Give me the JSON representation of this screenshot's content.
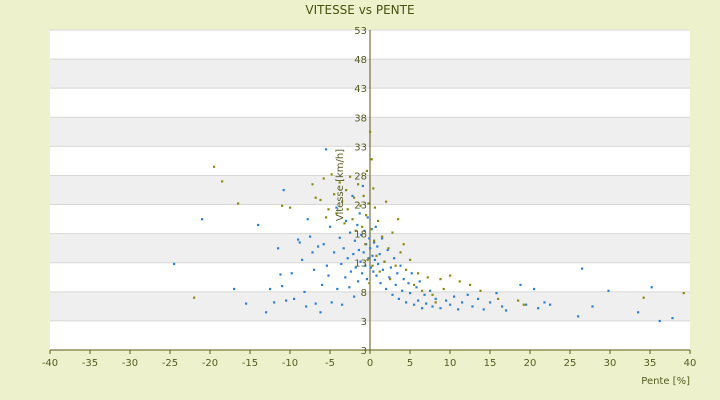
{
  "chart_data": {
    "type": "scatter",
    "title": "VITESSE vs PENTE",
    "xlabel": "Pente [%]",
    "ylabel": "Vitesse [km/h]",
    "xlim": [
      -40,
      40
    ],
    "ylim": [
      -2,
      53
    ],
    "x_ticks": [
      "-40",
      "-35",
      "-30",
      "-25",
      "-20",
      "-15",
      "-10",
      "-5",
      "0",
      "5",
      "10",
      "15",
      "20",
      "25",
      "30",
      "35",
      "40"
    ],
    "y_ticks": [
      "53",
      "48",
      "43",
      "38",
      "33",
      "28",
      "23",
      "18",
      "13",
      "8",
      "3",
      "3"
    ],
    "grid": true,
    "colors": {
      "series_blue": "#2b7fd4",
      "series_olive": "#8a8a10",
      "band_grey": "#efefef",
      "plot_bg": "#ffffff",
      "page_bg": "#eef2cc"
    },
    "series": [
      {
        "color": "#2b7fd4",
        "points": [
          [
            -24.5,
            12.8
          ],
          [
            -21,
            20.5
          ],
          [
            -17,
            8.5
          ],
          [
            -15.5,
            6
          ],
          [
            -14,
            19.5
          ],
          [
            -13,
            4.5
          ],
          [
            -12.5,
            8.5
          ],
          [
            -12,
            6.2
          ],
          [
            -11.5,
            15.5
          ],
          [
            -11.2,
            11
          ],
          [
            -11,
            9
          ],
          [
            -10.8,
            25.5
          ],
          [
            -10.5,
            6.5
          ],
          [
            -9.8,
            11.2
          ],
          [
            -9.5,
            6.8
          ],
          [
            -9,
            17
          ],
          [
            -8.8,
            16.5
          ],
          [
            -8.5,
            13.5
          ],
          [
            -8.2,
            8
          ],
          [
            -8,
            5.5
          ],
          [
            -7.8,
            20.5
          ],
          [
            -7.5,
            17.5
          ],
          [
            -7.2,
            14.8
          ],
          [
            -7,
            11.8
          ],
          [
            -6.8,
            6
          ],
          [
            -6.5,
            15.8
          ],
          [
            -6.2,
            4.5
          ],
          [
            -6,
            9.2
          ],
          [
            -5.8,
            16.2
          ],
          [
            -5.5,
            32.5
          ],
          [
            -5.4,
            12.5
          ],
          [
            -5.2,
            10.8
          ],
          [
            -5,
            19.2
          ],
          [
            -4.8,
            6.2
          ],
          [
            -4.5,
            14.8
          ],
          [
            -4.2,
            22.5
          ],
          [
            -4.1,
            8.5
          ],
          [
            -3.8,
            17.3
          ],
          [
            -3.6,
            12.8
          ],
          [
            -3.5,
            5.8
          ],
          [
            -3.3,
            15.5
          ],
          [
            -3.1,
            10.5
          ],
          [
            -3,
            20.2
          ],
          [
            -2.8,
            13.8
          ],
          [
            -2.6,
            8.8
          ],
          [
            -2.5,
            18.2
          ],
          [
            -2.4,
            11.5
          ],
          [
            -2.2,
            24.5
          ],
          [
            -2.1,
            14.5
          ],
          [
            -2,
            7.2
          ],
          [
            -1.9,
            16.8
          ],
          [
            -1.8,
            12.2
          ],
          [
            -1.6,
            19.5
          ],
          [
            -1.5,
            9.8
          ],
          [
            -1.4,
            15.2
          ],
          [
            -1.3,
            21.5
          ],
          [
            -1.2,
            13.2
          ],
          [
            -1.1,
            17.8
          ],
          [
            -1,
            11.2
          ],
          [
            -0.9,
            26.2
          ],
          [
            -0.8,
            14.8
          ],
          [
            -0.7,
            18.5
          ],
          [
            -0.6,
            12.5
          ],
          [
            -0.5,
            16.2
          ],
          [
            -0.4,
            10.2
          ],
          [
            -0.3,
            20.8
          ],
          [
            -0.2,
            13.8
          ],
          [
            -0.1,
            17.2
          ],
          [
            0,
            15.5
          ],
          [
            0.1,
            12.2
          ],
          [
            0.2,
            18.8
          ],
          [
            0.3,
            14.2
          ],
          [
            0.4,
            11.5
          ],
          [
            0.5,
            16.5
          ],
          [
            0.6,
            13.5
          ],
          [
            0.7,
            19.2
          ],
          [
            0.8,
            10.8
          ],
          [
            0.9,
            15.8
          ],
          [
            1,
            12.8
          ],
          [
            1.2,
            14.5
          ],
          [
            1.3,
            9.5
          ],
          [
            1.5,
            17.2
          ],
          [
            1.6,
            11.8
          ],
          [
            1.8,
            13.2
          ],
          [
            2,
            8.5
          ],
          [
            2.2,
            15.2
          ],
          [
            2.4,
            10.5
          ],
          [
            2.6,
            12.2
          ],
          [
            2.8,
            7.5
          ],
          [
            3,
            13.8
          ],
          [
            3.2,
            9.2
          ],
          [
            3.4,
            11.2
          ],
          [
            3.6,
            6.8
          ],
          [
            3.8,
            12.5
          ],
          [
            4,
            8.2
          ],
          [
            4.2,
            10.2
          ],
          [
            4.5,
            6.2
          ],
          [
            4.8,
            9.5
          ],
          [
            5,
            7.8
          ],
          [
            5.2,
            11.2
          ],
          [
            5.5,
            5.8
          ],
          [
            5.8,
            8.8
          ],
          [
            6,
            6.5
          ],
          [
            6.2,
            9.8
          ],
          [
            6.5,
            5.2
          ],
          [
            6.8,
            7.5
          ],
          [
            7,
            6
          ],
          [
            7.5,
            8.2
          ],
          [
            7.8,
            5.5
          ],
          [
            8.2,
            6.8
          ],
          [
            8.8,
            5.2
          ],
          [
            9.5,
            6.5
          ],
          [
            10,
            5.8
          ],
          [
            10.5,
            7.2
          ],
          [
            11,
            5
          ],
          [
            11.5,
            6.2
          ],
          [
            12.2,
            7.5
          ],
          [
            12.8,
            5.5
          ],
          [
            13.5,
            6.8
          ],
          [
            14.2,
            5
          ],
          [
            15,
            6.2
          ],
          [
            15.8,
            7.8
          ],
          [
            16.5,
            5.5
          ],
          [
            17,
            4.8
          ],
          [
            18.8,
            9.2
          ],
          [
            19.5,
            5.8
          ],
          [
            20.5,
            8.5
          ],
          [
            21,
            5.2
          ],
          [
            21.8,
            6.2
          ],
          [
            22.5,
            5.8
          ],
          [
            26,
            3.8
          ],
          [
            26.5,
            12
          ],
          [
            27.8,
            5.5
          ],
          [
            29.8,
            8.2
          ],
          [
            33.5,
            4.5
          ],
          [
            35.2,
            8.8
          ],
          [
            36.2,
            3
          ],
          [
            37.8,
            3.5
          ]
        ]
      },
      {
        "color": "#8a8a10",
        "points": [
          [
            -22,
            7
          ],
          [
            -19.5,
            29.5
          ],
          [
            -18.5,
            27
          ],
          [
            -16.5,
            23.2
          ],
          [
            -11,
            22.8
          ],
          [
            -10,
            22.5
          ],
          [
            -7.2,
            26.5
          ],
          [
            -6.8,
            24.2
          ],
          [
            -6.2,
            23.8
          ],
          [
            -5.8,
            27.5
          ],
          [
            -5.5,
            20.8
          ],
          [
            -5.2,
            22.2
          ],
          [
            -4.8,
            28.2
          ],
          [
            -4.5,
            24.8
          ],
          [
            -4.2,
            21.5
          ],
          [
            -3.8,
            26.8
          ],
          [
            -3.5,
            23.5
          ],
          [
            -3.2,
            19.8
          ],
          [
            -3,
            25.5
          ],
          [
            -2.8,
            22.2
          ],
          [
            -2.5,
            27.8
          ],
          [
            -2.2,
            20.5
          ],
          [
            -2,
            24.2
          ],
          [
            -1.8,
            18.5
          ],
          [
            -1.5,
            26.5
          ],
          [
            -1.2,
            22.8
          ],
          [
            -1,
            19.2
          ],
          [
            -0.8,
            24.5
          ],
          [
            -0.6,
            16.2
          ],
          [
            -0.5,
            21.2
          ],
          [
            -0.4,
            28.8
          ],
          [
            -0.3,
            13.5
          ],
          [
            -0.2,
            23.2
          ],
          [
            -0.1,
            9.5
          ],
          [
            0,
            35.5
          ],
          [
            0.1,
            18.8
          ],
          [
            0.2,
            30.8
          ],
          [
            0.3,
            12.5
          ],
          [
            0.4,
            25.8
          ],
          [
            0.5,
            16.8
          ],
          [
            0.6,
            22.5
          ],
          [
            0.8,
            14.2
          ],
          [
            1,
            20.2
          ],
          [
            1.2,
            11.5
          ],
          [
            1.5,
            17.5
          ],
          [
            1.8,
            13.2
          ],
          [
            2,
            23.5
          ],
          [
            2.3,
            15.5
          ],
          [
            2.5,
            10.2
          ],
          [
            2.8,
            18.2
          ],
          [
            3.2,
            12.5
          ],
          [
            3.5,
            20.5
          ],
          [
            3.8,
            14.8
          ],
          [
            4.2,
            16.2
          ],
          [
            4.5,
            11.8
          ],
          [
            5,
            13.5
          ],
          [
            5.5,
            9.2
          ],
          [
            6,
            11.2
          ],
          [
            6.5,
            8.2
          ],
          [
            7.2,
            10.5
          ],
          [
            7.8,
            7.5
          ],
          [
            8.2,
            6.2
          ],
          [
            8.8,
            10.2
          ],
          [
            9.2,
            8.5
          ],
          [
            10,
            10.8
          ],
          [
            11.2,
            9.8
          ],
          [
            12.5,
            9.2
          ],
          [
            13.8,
            8.2
          ],
          [
            16,
            6.8
          ],
          [
            18.5,
            6.5
          ],
          [
            19.2,
            5.8
          ],
          [
            34.2,
            7
          ],
          [
            39.2,
            7.8
          ]
        ]
      }
    ]
  }
}
